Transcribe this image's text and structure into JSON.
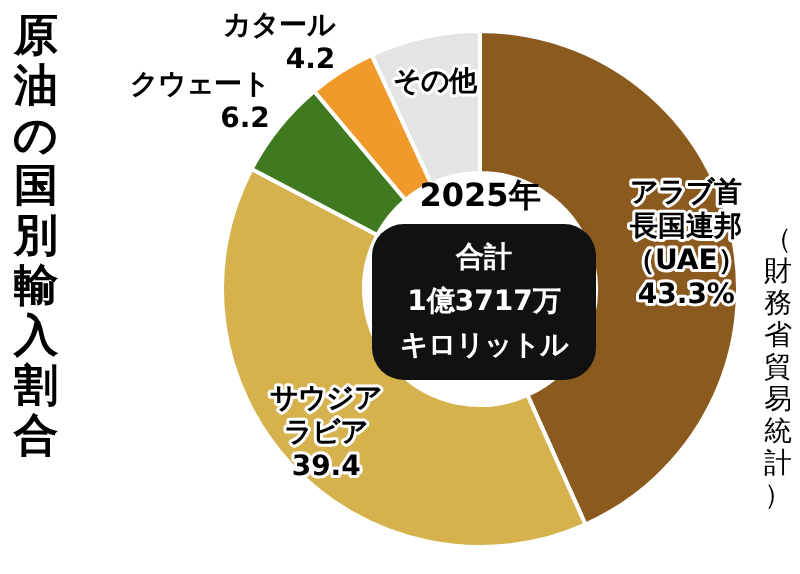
{
  "chart_data": {
    "type": "donut",
    "title": "原油の国別輸入割合",
    "subtitle": "2025年",
    "categories": [
      "アラブ首長国連邦（UAE）",
      "サウジアラビア",
      "クウェート",
      "カタール",
      "その他"
    ],
    "values": [
      43.3,
      39.4,
      6.2,
      4.2,
      6.9
    ],
    "colors": [
      "#8b5a1e",
      "#d6b24e",
      "#3f7a21",
      "#f09a2c",
      "#e4e4e4"
    ],
    "value_labels": [
      "43.3%",
      "39.4",
      "6.2",
      "4.2",
      null
    ],
    "legend": false,
    "annotations": [
      "合計",
      "1億3717万",
      "キロリットル",
      "（財務省貿易統計）"
    ]
  }
}
